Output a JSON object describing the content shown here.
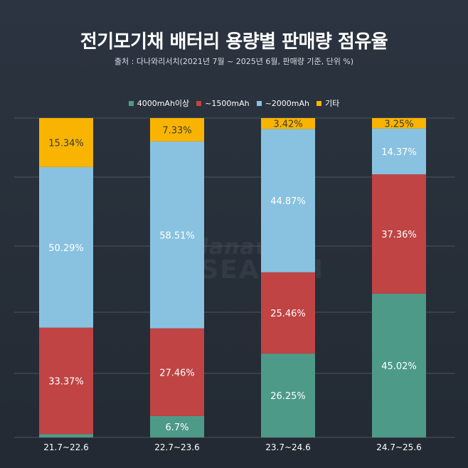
{
  "title": "전기모기채 배터리 용량별 판매량 점유율",
  "subtitle": "출처 : 다나와리서치(2021년 7월 ~ 2025년 6월, 판매량 기준, 단위 %)",
  "watermark": {
    "line1": "danawa",
    "line2": "RESEARCH"
  },
  "colors": {
    "4000mAh이상": "#4e9a89",
    "~1500mAh": "#c04444",
    "~2000mAh": "#89c2e0",
    "기타": "#f8b400",
    "grid": "#4a5360"
  },
  "chart_data": {
    "type": "bar",
    "stacked": true,
    "categories": [
      "21.7~22.6",
      "22.7~23.6",
      "23.7~24.6",
      "24.7~25.6"
    ],
    "series": [
      {
        "name": "4000mAh이상",
        "values": [
          1.0,
          6.7,
          26.25,
          45.02
        ],
        "labels": [
          "",
          "6.7%",
          "26.25%",
          "45.02%"
        ]
      },
      {
        "name": "~1500mAh",
        "values": [
          33.37,
          27.46,
          25.46,
          37.36
        ],
        "labels": [
          "33.37%",
          "27.46%",
          "25.46%",
          "37.36%"
        ]
      },
      {
        "name": "~2000mAh",
        "values": [
          50.29,
          58.51,
          44.87,
          14.37
        ],
        "labels": [
          "50.29%",
          "58.51%",
          "44.87%",
          "14.37%"
        ]
      },
      {
        "name": "기타",
        "values": [
          15.34,
          7.33,
          3.42,
          3.25
        ],
        "labels": [
          "15.34%",
          "7.33%",
          "3.42%",
          "3.25%"
        ]
      }
    ],
    "ylim": [
      0,
      100
    ],
    "grid": true,
    "legend": "top-center"
  }
}
